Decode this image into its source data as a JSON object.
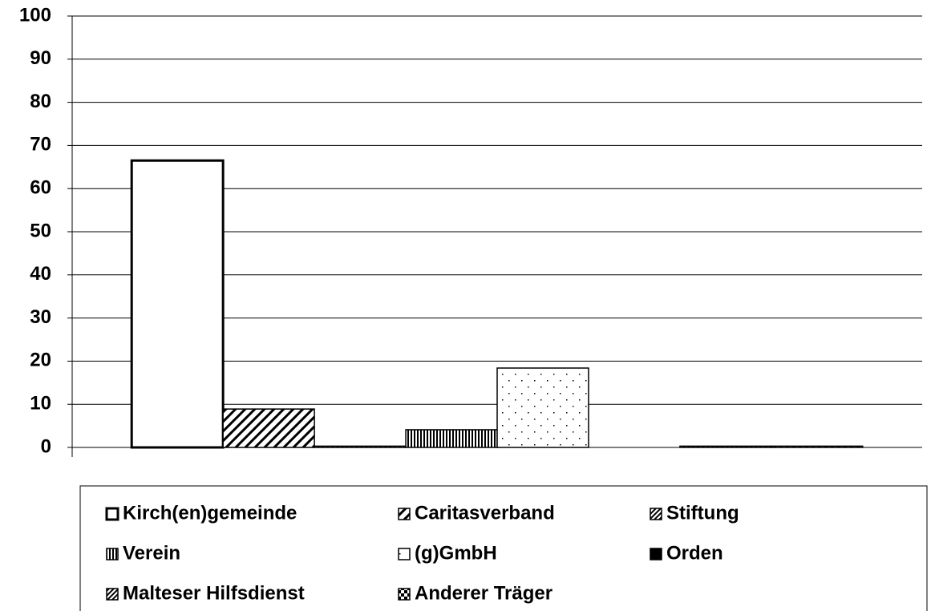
{
  "chart_data": {
    "type": "bar",
    "series": [
      {
        "name": "Kirch(en)gemeinde",
        "color": "#000000",
        "pattern": "none",
        "values": [
          66.5
        ]
      },
      {
        "name": "Caritasverband",
        "color": "#000000",
        "pattern": "diagonal",
        "values": [
          8.9
        ]
      },
      {
        "name": "Stiftung",
        "color": "#000000",
        "pattern": "diagonal-dense",
        "values": [
          0.3
        ]
      },
      {
        "name": "Verein",
        "color": "#000000",
        "pattern": "vertical",
        "values": [
          4.1
        ]
      },
      {
        "name": "(g)GmbH",
        "color": "#000000",
        "pattern": "dots",
        "values": [
          18.4
        ]
      },
      {
        "name": "Orden",
        "color": "#000000",
        "pattern": "solid",
        "values": [
          0
        ]
      },
      {
        "name": "Malteser Hilfsdienst",
        "color": "#000000",
        "pattern": "diagonal-dense",
        "values": [
          0.3
        ]
      },
      {
        "name": "Anderer Träger",
        "color": "#000000",
        "pattern": "checker",
        "values": [
          0.3
        ]
      }
    ],
    "ylim": [
      0,
      100
    ],
    "yticks": [
      0,
      10,
      20,
      30,
      40,
      50,
      60,
      70,
      80,
      90,
      100
    ],
    "grid": true,
    "legend": "bottom"
  }
}
